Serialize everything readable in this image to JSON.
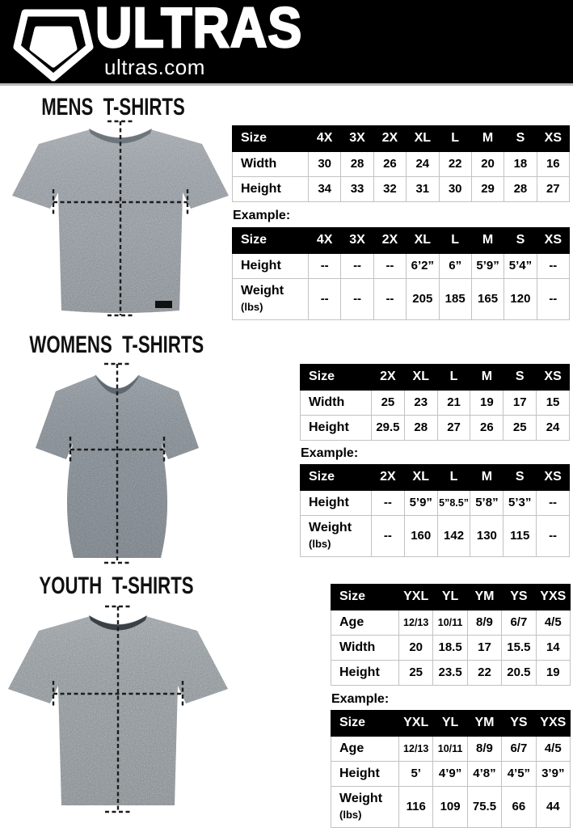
{
  "header": {
    "brand": "ULTRAS",
    "site": "ultras.com"
  },
  "colors": {
    "header_bg": "#000000",
    "table_header_bg": "#000000",
    "table_border": "#c2c2c2",
    "mens_shirt": "#8d949b",
    "womens_shirt": "#79828a",
    "youth_shirt": "#868d92"
  },
  "sections": [
    {
      "title": "MENS  T-SHIRTS",
      "example_label": "Example:",
      "size_table": {
        "header": [
          "Size",
          "4X",
          "3X",
          "2X",
          "XL",
          "L",
          "M",
          "S",
          "XS"
        ],
        "rows": [
          {
            "label": "Width",
            "cells": [
              "30",
              "28",
              "26",
              "24",
              "22",
              "20",
              "18",
              "16"
            ]
          },
          {
            "label": "Height",
            "cells": [
              "34",
              "33",
              "32",
              "31",
              "30",
              "29",
              "28",
              "27"
            ]
          }
        ]
      },
      "example_table": {
        "header": [
          "Size",
          "4X",
          "3X",
          "2X",
          "XL",
          "L",
          "M",
          "S",
          "XS"
        ],
        "rows": [
          {
            "label": "Height",
            "cells": [
              "--",
              "--",
              "--",
              "6’2”",
              "6”",
              "5’9”",
              "5’4”",
              "--"
            ]
          },
          {
            "label": [
              "Weight",
              "(lbs)"
            ],
            "cells": [
              "--",
              "--",
              "--",
              "205",
              "185",
              "165",
              "120",
              "--"
            ]
          }
        ]
      }
    },
    {
      "title": "WOMENS  T-SHIRTS",
      "example_label": "Example:",
      "size_table": {
        "header": [
          "Size",
          "2X",
          "XL",
          "L",
          "M",
          "S",
          "XS"
        ],
        "rows": [
          {
            "label": "Width",
            "cells": [
              "25",
              "23",
              "21",
              "19",
              "17",
              "15"
            ]
          },
          {
            "label": "Height",
            "cells": [
              "29.5",
              "28",
              "27",
              "26",
              "25",
              "24"
            ]
          }
        ]
      },
      "example_table": {
        "header": [
          "Size",
          "2X",
          "XL",
          "L",
          "M",
          "S",
          "XS"
        ],
        "rows": [
          {
            "label": "Height",
            "cells": [
              "--",
              "5’9”",
              "5”8.5”",
              "5’8”",
              "5’3”",
              "--"
            ]
          },
          {
            "label": [
              "Weight",
              "(lbs)"
            ],
            "cells": [
              "--",
              "160",
              "142",
              "130",
              "115",
              "--"
            ]
          }
        ]
      }
    },
    {
      "title": "YOUTH  T-SHIRTS",
      "example_label": "Example:",
      "size_table": {
        "header": [
          "Size",
          "YXL",
          "YL",
          "YM",
          "YS",
          "YXS"
        ],
        "rows": [
          {
            "label": "Age",
            "cells": [
              "12/13",
              "10/11",
              "8/9",
              "6/7",
              "4/5"
            ]
          },
          {
            "label": "Width",
            "cells": [
              "20",
              "18.5",
              "17",
              "15.5",
              "14"
            ]
          },
          {
            "label": "Height",
            "cells": [
              "25",
              "23.5",
              "22",
              "20.5",
              "19"
            ]
          }
        ]
      },
      "example_table": {
        "header": [
          "Size",
          "YXL",
          "YL",
          "YM",
          "YS",
          "YXS"
        ],
        "rows": [
          {
            "label": "Age",
            "cells": [
              "12/13",
              "10/11",
              "8/9",
              "6/7",
              "4/5"
            ]
          },
          {
            "label": "Height",
            "cells": [
              "5’",
              "4’9”",
              "4’8”",
              "4’5”",
              "3’9”"
            ]
          },
          {
            "label": [
              "Weight",
              "(lbs)"
            ],
            "cells": [
              "116",
              "109",
              "75.5",
              "66",
              "44"
            ]
          }
        ]
      }
    }
  ]
}
